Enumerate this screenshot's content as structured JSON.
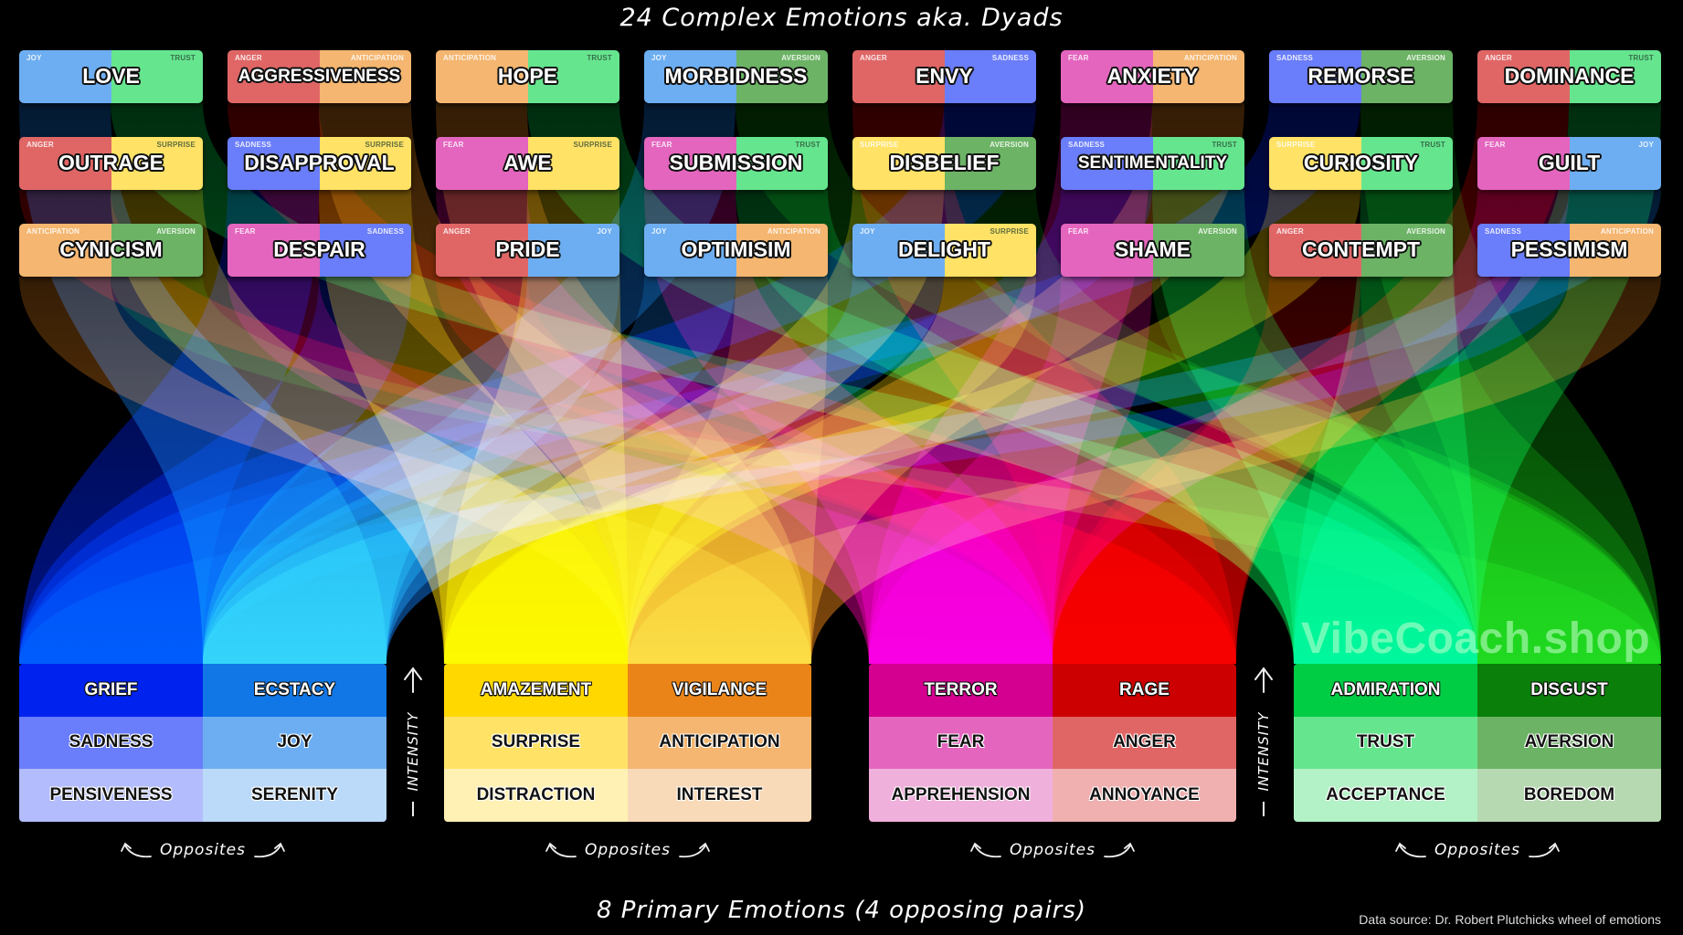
{
  "title": "24 Complex Emotions aka. Dyads",
  "footer_title": "8 Primary Emotions (4 opposing pairs)",
  "data_source": "Data source: Dr. Robert Plutchicks wheel of emotions",
  "watermark": "VibeCoach.shop",
  "intensity_label": "INTENSITY",
  "opposites_label": "Opposites",
  "colors": {
    "joy": "#6daef2",
    "trust": "#66e58f",
    "anger": "#e06666",
    "anticipation": "#f4b670",
    "aversion": "#6cb365",
    "sadness": "#6a7dfa",
    "fear": "#e465be",
    "surprise": "#ffe266"
  },
  "dyads": [
    {
      "name": "LOVE",
      "left": "JOY",
      "right": "TRUST"
    },
    {
      "name": "AGGRESSIVENESS",
      "left": "ANGER",
      "right": "ANTICIPATION"
    },
    {
      "name": "HOPE",
      "left": "ANTICIPATION",
      "right": "TRUST"
    },
    {
      "name": "MORBIDNESS",
      "left": "JOY",
      "right": "AVERSION"
    },
    {
      "name": "ENVY",
      "left": "ANGER",
      "right": "SADNESS"
    },
    {
      "name": "ANXIETY",
      "left": "FEAR",
      "right": "ANTICIPATION"
    },
    {
      "name": "REMORSE",
      "left": "SADNESS",
      "right": "AVERSION"
    },
    {
      "name": "DOMINANCE",
      "left": "ANGER",
      "right": "TRUST"
    },
    {
      "name": "OUTRAGE",
      "left": "ANGER",
      "right": "SURPRISE"
    },
    {
      "name": "DISAPPROVAL",
      "left": "SADNESS",
      "right": "SURPRISE"
    },
    {
      "name": "AWE",
      "left": "FEAR",
      "right": "SURPRISE"
    },
    {
      "name": "SUBMISSION",
      "left": "FEAR",
      "right": "TRUST"
    },
    {
      "name": "DISBELIEF",
      "left": "SURPRISE",
      "right": "AVERSION"
    },
    {
      "name": "SENTIMENTALITY",
      "left": "SADNESS",
      "right": "TRUST"
    },
    {
      "name": "CURIOSITY",
      "left": "SURPRISE",
      "right": "TRUST"
    },
    {
      "name": "GUILT",
      "left": "FEAR",
      "right": "JOY"
    },
    {
      "name": "CYNICISM",
      "left": "ANTICIPATION",
      "right": "AVERSION"
    },
    {
      "name": "DESPAIR",
      "left": "FEAR",
      "right": "SADNESS"
    },
    {
      "name": "PRIDE",
      "left": "ANGER",
      "right": "JOY"
    },
    {
      "name": "OPTIMISIM",
      "left": "JOY",
      "right": "ANTICIPATION"
    },
    {
      "name": "DELIGHT",
      "left": "JOY",
      "right": "SURPRISE"
    },
    {
      "name": "SHAME",
      "left": "FEAR",
      "right": "AVERSION"
    },
    {
      "name": "CONTEMPT",
      "left": "ANGER",
      "right": "AVERSION"
    },
    {
      "name": "PESSIMISM",
      "left": "SADNESS",
      "right": "ANTICIPATION"
    }
  ],
  "primary_groups": [
    {
      "columns": [
        {
          "key": "sadness",
          "levels": [
            "GRIEF",
            "SADNESS",
            "PENSIVENESS"
          ],
          "colors": [
            "#0022ee",
            "#6a7dfa",
            "#b3bcfc"
          ]
        },
        {
          "key": "joy",
          "levels": [
            "ECSTACY",
            "JOY",
            "SERENITY"
          ],
          "colors": [
            "#1177e6",
            "#6daef2",
            "#bbd9f9"
          ]
        }
      ]
    },
    {
      "columns": [
        {
          "key": "surprise",
          "levels": [
            "AMAZEMENT",
            "SURPRISE",
            "DISTRACTION"
          ],
          "colors": [
            "#ffd800",
            "#ffe266",
            "#fff1b3"
          ]
        },
        {
          "key": "anticipation",
          "levels": [
            "VIGILANCE",
            "ANTICIPATION",
            "INTEREST"
          ],
          "colors": [
            "#eb8418",
            "#f4b670",
            "#f9dab8"
          ]
        }
      ]
    },
    {
      "columns": [
        {
          "key": "fear",
          "levels": [
            "TERROR",
            "FEAR",
            "APPREHENSION"
          ],
          "colors": [
            "#d40090",
            "#e465be",
            "#f0b0dc"
          ]
        },
        {
          "key": "anger",
          "levels": [
            "RAGE",
            "ANGER",
            "ANNOYANCE"
          ],
          "colors": [
            "#cc0000",
            "#e06666",
            "#f0b0b0"
          ]
        }
      ]
    },
    {
      "columns": [
        {
          "key": "trust",
          "levels": [
            "ADMIRATION",
            "TRUST",
            "ACCEPTANCE"
          ],
          "colors": [
            "#00cc44",
            "#66e58f",
            "#b3f2c6"
          ]
        },
        {
          "key": "aversion",
          "levels": [
            "DISGUST",
            "AVERSION",
            "BOREDOM"
          ],
          "colors": [
            "#0a7f0a",
            "#6cb365",
            "#b6d9b2"
          ]
        }
      ]
    }
  ]
}
